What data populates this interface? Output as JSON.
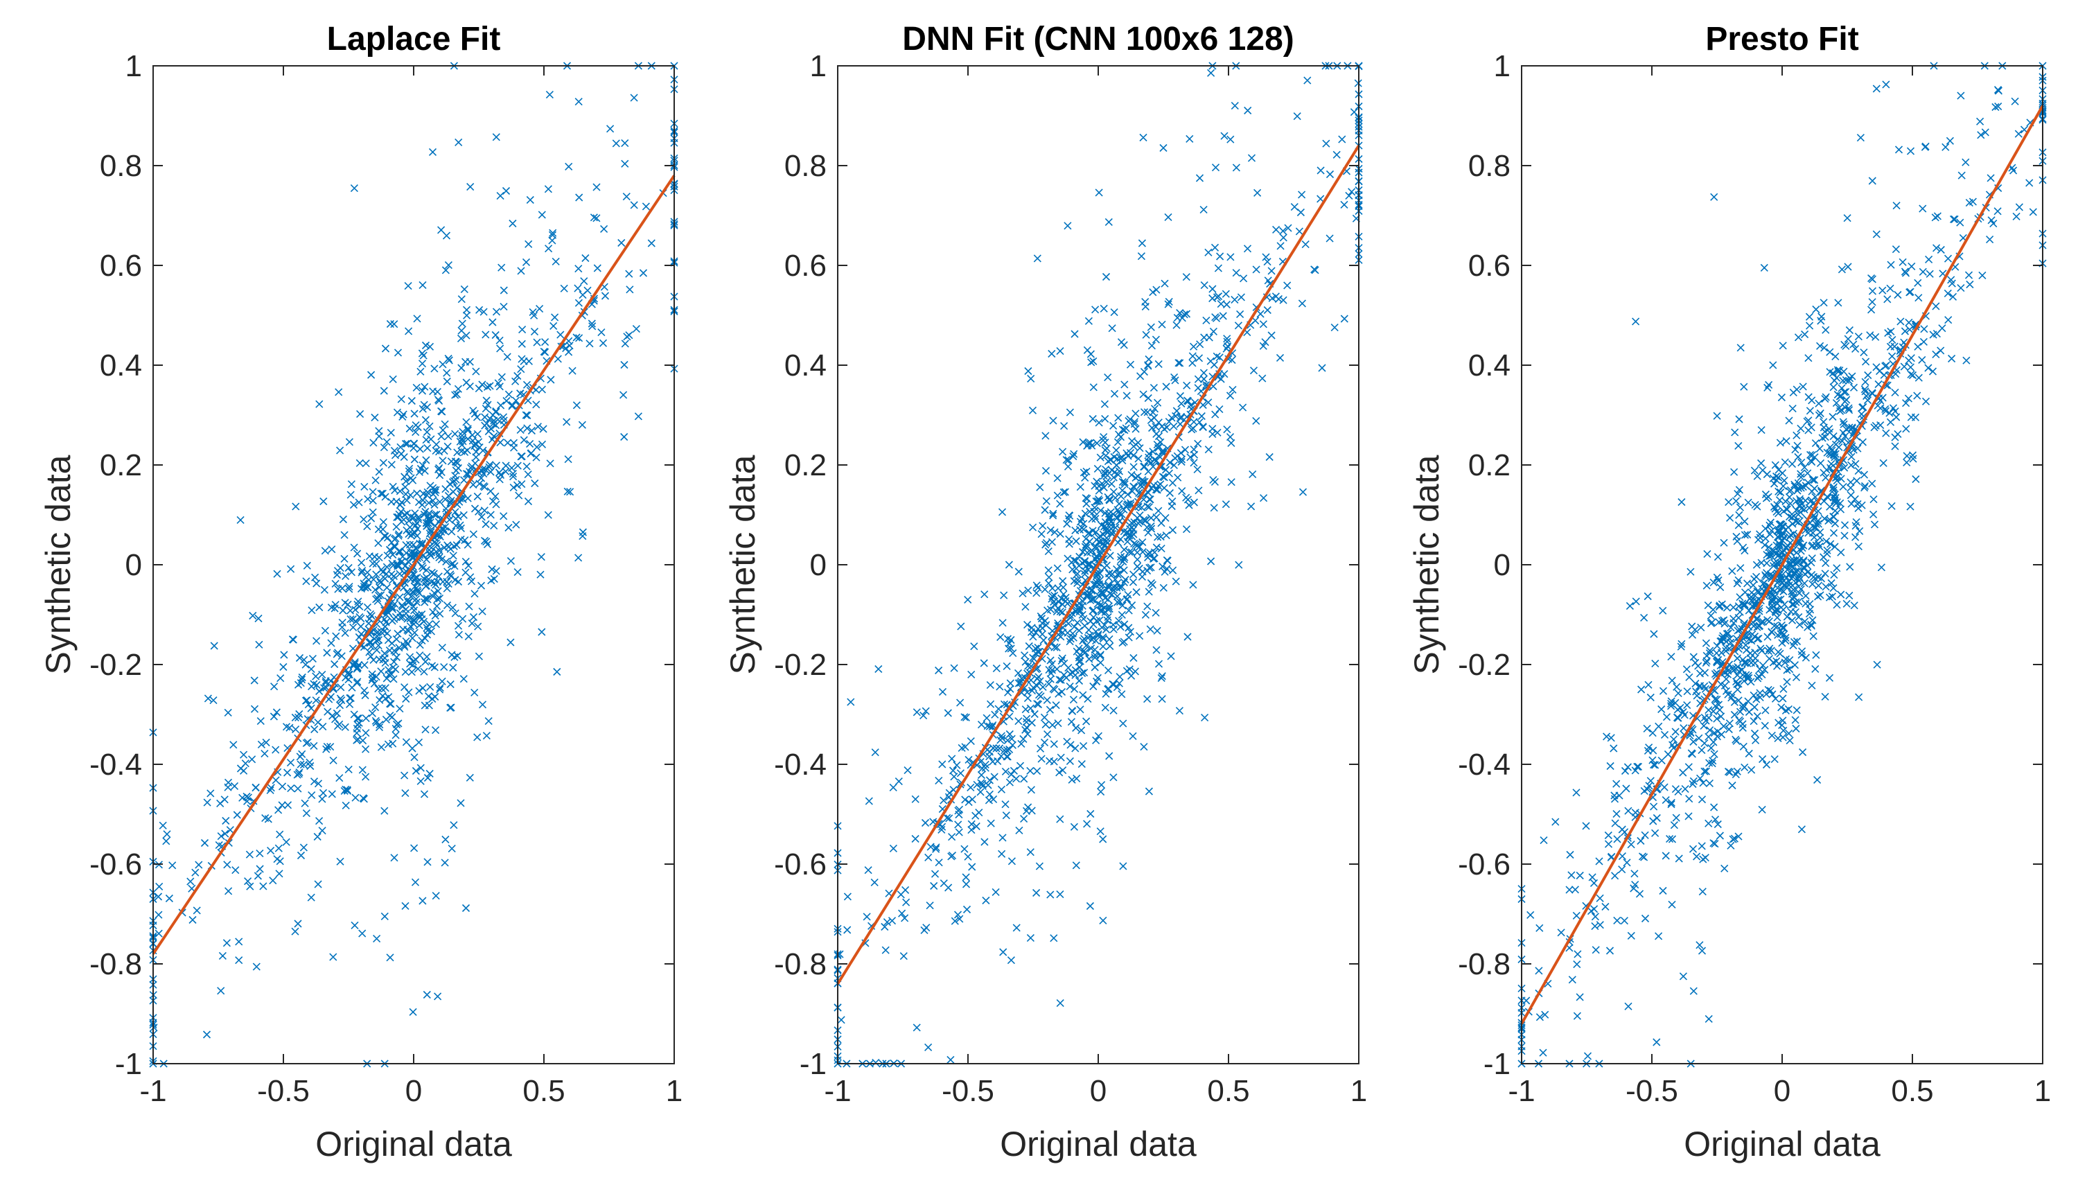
{
  "chart_data": [
    {
      "type": "scatter",
      "title": "Laplace Fit",
      "xlabel": "Original data",
      "ylabel": "Synthetic data",
      "xlim": [
        -1,
        1
      ],
      "ylim": [
        -1,
        1
      ],
      "xticks": [
        -1,
        -0.5,
        0,
        0.5,
        1
      ],
      "xtick_labels": [
        "-1",
        "-0.5",
        "0",
        "0.5",
        "1"
      ],
      "yticks": [
        -1,
        -0.8,
        -0.6,
        -0.4,
        -0.2,
        0,
        0.2,
        0.4,
        0.6,
        0.8,
        1
      ],
      "ytick_labels": [
        "-1",
        "-0.8",
        "-0.6",
        "-0.4",
        "-0.2",
        "0",
        "0.2",
        "0.4",
        "0.6",
        "0.8",
        "1"
      ],
      "marker": "x",
      "scatter_color": "#0072BD",
      "fit_color": "#D95319",
      "series": [
        {
          "name": "data",
          "kind": "scatter",
          "slope_estimate": 0.78,
          "spread_estimate": 0.2,
          "x_scale_estimate": 0.3
        },
        {
          "name": "fit",
          "kind": "line",
          "x": [
            -1,
            1
          ],
          "y": [
            -0.78,
            0.78
          ]
        }
      ]
    },
    {
      "type": "scatter",
      "title": "DNN Fit (CNN 100x6 128)",
      "xlabel": "Original data",
      "ylabel": "Synthetic data",
      "xlim": [
        -1,
        1
      ],
      "ylim": [
        -1,
        1
      ],
      "xticks": [
        -1,
        -0.5,
        0,
        0.5,
        1
      ],
      "xtick_labels": [
        "-1",
        "-0.5",
        "0",
        "0.5",
        "1"
      ],
      "yticks": [
        -1,
        -0.8,
        -0.6,
        -0.4,
        -0.2,
        0,
        0.2,
        0.4,
        0.6,
        0.8,
        1
      ],
      "ytick_labels": [
        "-1",
        "-0.8",
        "-0.6",
        "-0.4",
        "-0.2",
        "0",
        "0.2",
        "0.4",
        "0.6",
        "0.8",
        "1"
      ],
      "marker": "x",
      "scatter_color": "#0072BD",
      "fit_color": "#D95319",
      "series": [
        {
          "name": "data",
          "kind": "scatter",
          "slope_estimate": 0.84,
          "spread_estimate": 0.18,
          "x_scale_estimate": 0.3
        },
        {
          "name": "fit",
          "kind": "line",
          "x": [
            -1,
            1
          ],
          "y": [
            -0.84,
            0.84
          ]
        }
      ]
    },
    {
      "type": "scatter",
      "title": "Presto Fit",
      "xlabel": "Original data",
      "ylabel": "Synthetic data",
      "xlim": [
        -1,
        1
      ],
      "ylim": [
        -1,
        1
      ],
      "xticks": [
        -1,
        -0.5,
        0,
        0.5,
        1
      ],
      "xtick_labels": [
        "-1",
        "-0.5",
        "0",
        "0.5",
        "1"
      ],
      "yticks": [
        -1,
        -0.8,
        -0.6,
        -0.4,
        -0.2,
        0,
        0.2,
        0.4,
        0.6,
        0.8,
        1
      ],
      "ytick_labels": [
        "-1",
        "-0.8",
        "-0.6",
        "-0.4",
        "-0.2",
        "0",
        "0.2",
        "0.4",
        "0.6",
        "0.8",
        "1"
      ],
      "marker": "x",
      "scatter_color": "#0072BD",
      "fit_color": "#D95319",
      "series": [
        {
          "name": "data",
          "kind": "scatter",
          "slope_estimate": 0.92,
          "spread_estimate": 0.15,
          "x_scale_estimate": 0.3
        },
        {
          "name": "fit",
          "kind": "line",
          "x": [
            -1,
            1
          ],
          "y": [
            -0.92,
            0.92
          ]
        }
      ]
    }
  ]
}
